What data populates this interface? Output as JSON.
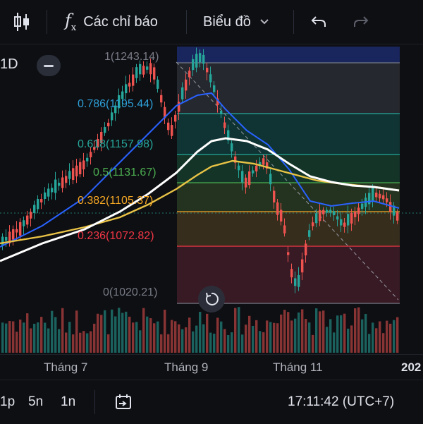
{
  "toolbar": {
    "indicators_label": "Các chỉ báo",
    "chart_type_label": "Biểu đồ",
    "icons": [
      "candles-icon",
      "function-icon",
      "chevron-down-icon",
      "undo-icon",
      "redo-icon"
    ]
  },
  "chart": {
    "timeframe": "1D",
    "fib_levels": [
      {
        "label": "1(1243.14)",
        "value": 1243.14,
        "line": "#787b86",
        "fill": "#1b2a6b",
        "text": "#787b86"
      },
      {
        "label": "0.786(1195.44)",
        "value": 1195.44,
        "line": "#26a69a",
        "fill": "#2a2d35",
        "text": "#2d9fd8"
      },
      {
        "label": "0.618(1157.98)",
        "value": 1157.98,
        "line": "#26a69a",
        "fill": "#0f3b3a",
        "text": "#26a69a"
      },
      {
        "label": "0.5(1131.67)",
        "value": 1131.67,
        "line": "#4caf50",
        "fill": "#143b2c",
        "text": "#4caf50"
      },
      {
        "label": "0.382(1105.37)",
        "value": 1105.37,
        "line": "#f5a623",
        "fill": "#283a22",
        "text": "#f5a623"
      },
      {
        "label": "0.236(1072.82)",
        "value": 1072.82,
        "line": "#f23645",
        "fill": "#3d3320",
        "text": "#f23645"
      },
      {
        "label": "0(1020.21)",
        "value": 1020.21,
        "line": "#787b86",
        "fill": "#3a1b24",
        "text": "#787b86"
      }
    ],
    "colors": {
      "up": "#26a69a",
      "down": "#ef5350",
      "ma_blue": "#2962ff",
      "ma_white": "#ffffff",
      "ma_yellow": "#e9c346"
    }
  },
  "x_axis": {
    "labels": [
      "Tháng 7",
      "Tháng 9",
      "Tháng 11",
      "202"
    ]
  },
  "bottom": {
    "intervals": [
      "1p",
      "5n",
      "1n"
    ],
    "time": "17:11:42 (UTC+7)",
    "icons": [
      "date-range-icon"
    ]
  }
}
